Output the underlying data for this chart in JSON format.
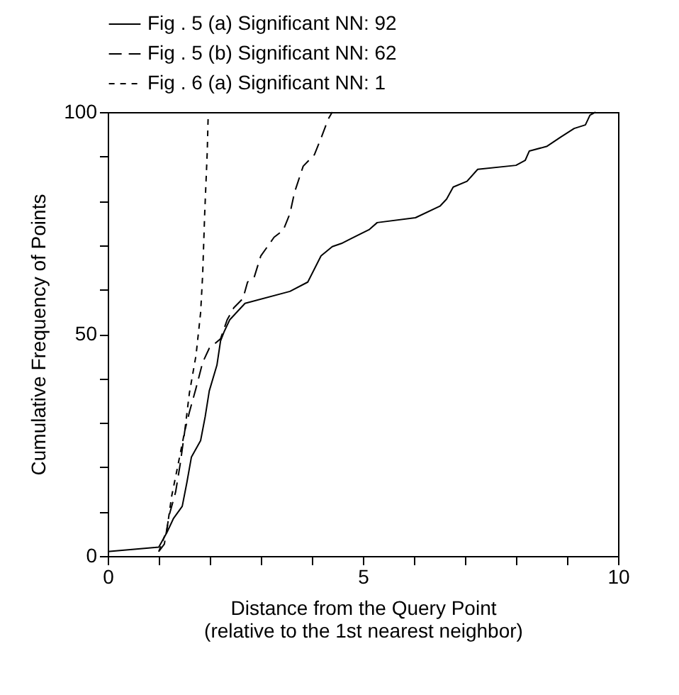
{
  "chart_data": {
    "type": "line",
    "xlabel": "Distance from the Query Point\n(relative to the 1st nearest neighbor)",
    "ylabel": "Cumulative Frequency of Points",
    "xlim": [
      0,
      10
    ],
    "ylim": [
      0,
      100
    ],
    "xticks": [
      0,
      {
        "value": 1,
        "label": null
      },
      {
        "value": 2,
        "label": null
      },
      {
        "value": 3,
        "label": null
      },
      {
        "value": 4,
        "label": null
      },
      5,
      {
        "value": 6,
        "label": null
      },
      {
        "value": 7,
        "label": null
      },
      {
        "value": 8,
        "label": null
      },
      {
        "value": 9,
        "label": null
      },
      10
    ],
    "yticks": [
      0,
      {
        "value": 10,
        "label": null
      },
      {
        "value": 20,
        "label": null
      },
      {
        "value": 30,
        "label": null
      },
      {
        "value": 40,
        "label": null
      },
      50,
      {
        "value": 60,
        "label": null
      },
      {
        "value": 70,
        "label": null
      },
      {
        "value": 80,
        "label": null
      },
      {
        "value": 90,
        "label": null
      },
      100
    ],
    "legend": "top",
    "grid": false,
    "marker": "none",
    "series": [
      {
        "name": "Fig . 5 (a)  Significant NN: 92",
        "color": "#000000",
        "line_style": "solid",
        "x": [
          0,
          1,
          1.16,
          1.29,
          1.46,
          1.55,
          1.64,
          1.82,
          1.91,
          1.99,
          2.14,
          2.21,
          2.28,
          2.39,
          2.69,
          3.57,
          3.92,
          4.18,
          4.4,
          4.58,
          4.75,
          5.12,
          5.28,
          6.03,
          6.51,
          6.64,
          6.77,
          7.04,
          7.25,
          8.0,
          8.18,
          8.26,
          8.61,
          8.88,
          9.14,
          9.36,
          9.45,
          9.56
        ],
        "values": [
          1,
          2,
          5.3,
          8.5,
          11.2,
          16.5,
          22.3,
          26,
          31.4,
          37.2,
          43,
          48.4,
          50.5,
          53.2,
          56.9,
          59.6,
          61.7,
          67.6,
          69.7,
          70.4,
          71.4,
          73.5,
          75.1,
          76.2,
          78.8,
          80.4,
          83.1,
          84.4,
          87.1,
          88,
          89.1,
          91.2,
          92.3,
          94.4,
          96.3,
          97.1,
          99.3,
          100
        ]
      },
      {
        "name": "Fig . 5 (b)  Significant NN: 62",
        "color": "#000000",
        "line_style": "dashed",
        "x": [
          1,
          1.11,
          1.2,
          1.33,
          1.42,
          1.51,
          1.6,
          1.73,
          1.86,
          1.99,
          2.21,
          2.34,
          2.47,
          2.65,
          2.74,
          2.87,
          3.0,
          3.26,
          3.44,
          3.57,
          3.66,
          3.83,
          4.05,
          4.18,
          4.32,
          4.4
        ],
        "values": [
          1,
          2.7,
          9,
          14.4,
          20.7,
          28.2,
          32.4,
          37.8,
          43.6,
          46.8,
          48.9,
          53.2,
          55.9,
          58,
          61.7,
          62.8,
          67.6,
          71.8,
          73.4,
          77.1,
          81.9,
          87.8,
          90.4,
          94.1,
          98.4,
          100
        ]
      },
      {
        "name": "Fig . 6 (a)  Significant NN: 1",
        "color": "#000000",
        "line_style": "dotted",
        "x": [
          1,
          1.16,
          1.25,
          1.38,
          1.51,
          1.6,
          1.73,
          1.82,
          1.86,
          1.9,
          1.95,
          1.97
        ],
        "values": [
          1,
          5.9,
          13.3,
          20.7,
          28.2,
          36.7,
          45.2,
          54.8,
          63.3,
          77.1,
          91,
          100
        ]
      }
    ]
  }
}
